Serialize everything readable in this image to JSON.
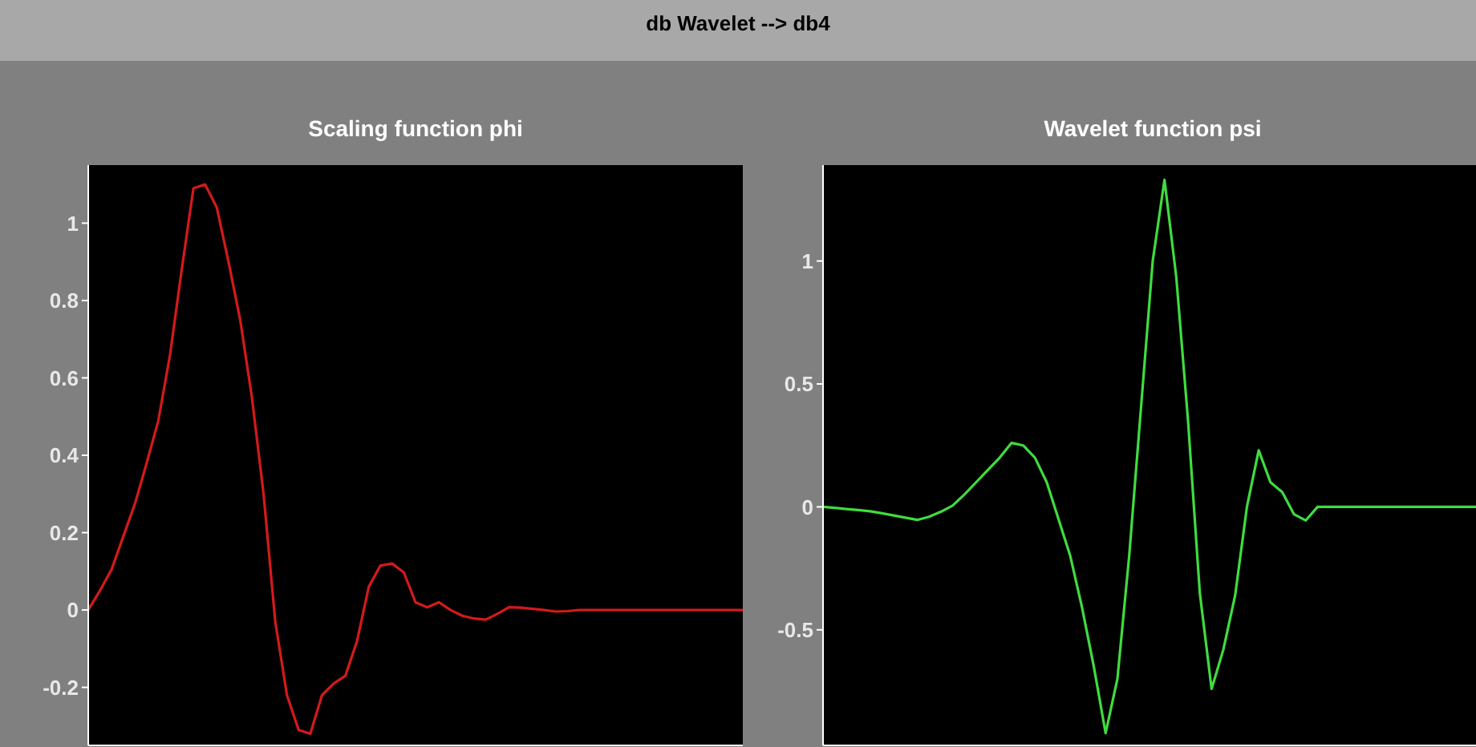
{
  "chart_data": [
    {
      "type": "line",
      "title": "Scaling function phi",
      "annotations": [
        "db Wavelet --> db4"
      ],
      "categories": [
        null,
        null,
        null,
        null,
        null,
        null,
        null,
        null,
        null,
        null,
        null,
        null,
        null,
        null,
        null,
        null,
        null,
        null,
        null,
        null,
        null,
        null,
        null,
        null,
        null,
        null,
        null,
        null,
        null,
        null,
        null,
        null,
        null,
        null,
        null,
        null,
        null,
        null,
        null,
        null,
        null,
        null,
        null,
        null,
        null,
        null,
        null,
        null,
        null,
        null,
        null,
        null,
        null,
        null,
        null,
        null,
        null
      ],
      "series": [
        {
          "color": "#d41a1a",
          "values": [
            0,
            0.05,
            0.105,
            0.19,
            0.275,
            0.38,
            0.49,
            0.66,
            0.88,
            1.09,
            1.1,
            1.04,
            0.9,
            0.75,
            0.55,
            0.3,
            -0.03,
            -0.22,
            -0.31,
            -0.32,
            -0.22,
            -0.19,
            -0.17,
            -0.08,
            0.06,
            0.115,
            0.12,
            0.097,
            0.02,
            0.007,
            0.02,
            0,
            -0.015,
            -0.022,
            -0.025,
            -0.01,
            0.007,
            0.006,
            0.003,
            0,
            -0.004,
            -0.003,
            0,
            0,
            0,
            0,
            0,
            0,
            0,
            0,
            0,
            0,
            0,
            0,
            0,
            0,
            0
          ]
        }
      ],
      "ylim": [
        -0.35,
        1.15
      ],
      "yticks": [
        -0.2,
        0,
        0.2,
        0.4,
        0.6,
        0.8,
        1
      ],
      "tick_labels": "y",
      "grid": false,
      "legend": false,
      "marker": "none",
      "line_style": "solid"
    },
    {
      "type": "line",
      "title": "Wavelet function psi",
      "categories": [
        null,
        null,
        null,
        null,
        null,
        null,
        null,
        null,
        null,
        null,
        null,
        null,
        null,
        null,
        null,
        null,
        null,
        null,
        null,
        null,
        null,
        null,
        null,
        null,
        null,
        null,
        null,
        null,
        null,
        null,
        null,
        null,
        null,
        null,
        null,
        null,
        null,
        null,
        null,
        null,
        null,
        null,
        null,
        null,
        null,
        null,
        null,
        null,
        null,
        null,
        null,
        null,
        null,
        null,
        null,
        null,
        null
      ],
      "series": [
        {
          "color": "#3fdc3f",
          "values": [
            0,
            -0.004,
            -0.009,
            -0.013,
            -0.018,
            -0.026,
            -0.035,
            -0.044,
            -0.053,
            -0.04,
            -0.02,
            0.005,
            0.05,
            0.1,
            0.15,
            0.2,
            0.26,
            0.25,
            0.2,
            0.1,
            -0.05,
            -0.2,
            -0.41,
            -0.65,
            -0.92,
            -0.7,
            -0.2,
            0.4,
            1.0,
            1.33,
            0.935,
            0.35,
            -0.35,
            -0.74,
            -0.58,
            -0.36,
            0,
            0.23,
            0.1,
            0.06,
            -0.03,
            -0.055,
            0,
            0,
            0,
            0,
            0,
            0,
            0,
            0,
            0,
            0,
            0,
            0,
            0,
            0,
            0
          ]
        }
      ],
      "ylim": [
        -0.97,
        1.39
      ],
      "yticks": [
        -0.5,
        0,
        0.5,
        1
      ],
      "tick_labels": "y",
      "grid": false,
      "legend": false,
      "marker": "none",
      "line_style": "solid"
    }
  ]
}
